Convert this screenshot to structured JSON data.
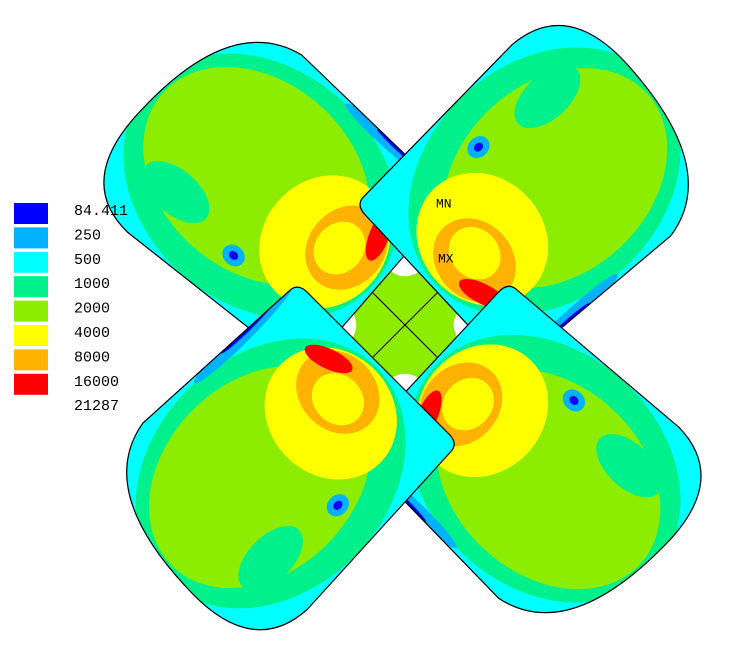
{
  "legend": {
    "labels": [
      "84.411",
      "250",
      "500",
      "1000",
      "2000",
      "4000",
      "8000",
      "16000",
      "21287"
    ],
    "colors": [
      "#0000ff",
      "#00b2ff",
      "#00ffff",
      "#00f08c",
      "#8ced00",
      "#ffff00",
      "#ffb200",
      "#ff0000"
    ]
  },
  "markers": {
    "min": "MN",
    "max": "MX"
  }
}
